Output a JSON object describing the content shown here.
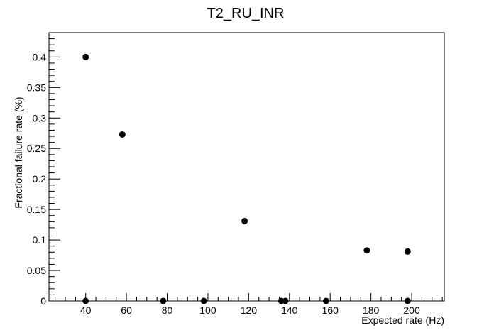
{
  "chart_data": {
    "type": "scatter",
    "title": "T2_RU_INR",
    "xlabel": "Expected rate (Hz)",
    "ylabel": "Fractional failure rate (%)",
    "xlim": [
      22,
      216
    ],
    "ylim": [
      0,
      0.44
    ],
    "xticks": [
      40,
      60,
      80,
      100,
      120,
      140,
      160,
      180,
      200
    ],
    "xtick_labels": [
      "40",
      "60",
      "80",
      "100",
      "120",
      "140",
      "160",
      "180",
      "200"
    ],
    "yticks": [
      0,
      0.05,
      0.1,
      0.15,
      0.2,
      0.25,
      0.3,
      0.35,
      0.4
    ],
    "ytick_labels": [
      "0",
      "0.05",
      "0.1",
      "0.15",
      "0.2",
      "0.25",
      "0.3",
      "0.35",
      "0.4"
    ],
    "grid": false,
    "legend": "none",
    "marker_color": "#000000",
    "points": [
      {
        "x": 40,
        "y": 0.4
      },
      {
        "x": 40,
        "y": 0
      },
      {
        "x": 58,
        "y": 0.273
      },
      {
        "x": 78,
        "y": 0
      },
      {
        "x": 98,
        "y": 0
      },
      {
        "x": 118,
        "y": 0.131
      },
      {
        "x": 136,
        "y": 0
      },
      {
        "x": 138,
        "y": 0
      },
      {
        "x": 158,
        "y": 0
      },
      {
        "x": 178,
        "y": 0.083
      },
      {
        "x": 198,
        "y": 0.081
      },
      {
        "x": 198,
        "y": 0
      }
    ]
  }
}
